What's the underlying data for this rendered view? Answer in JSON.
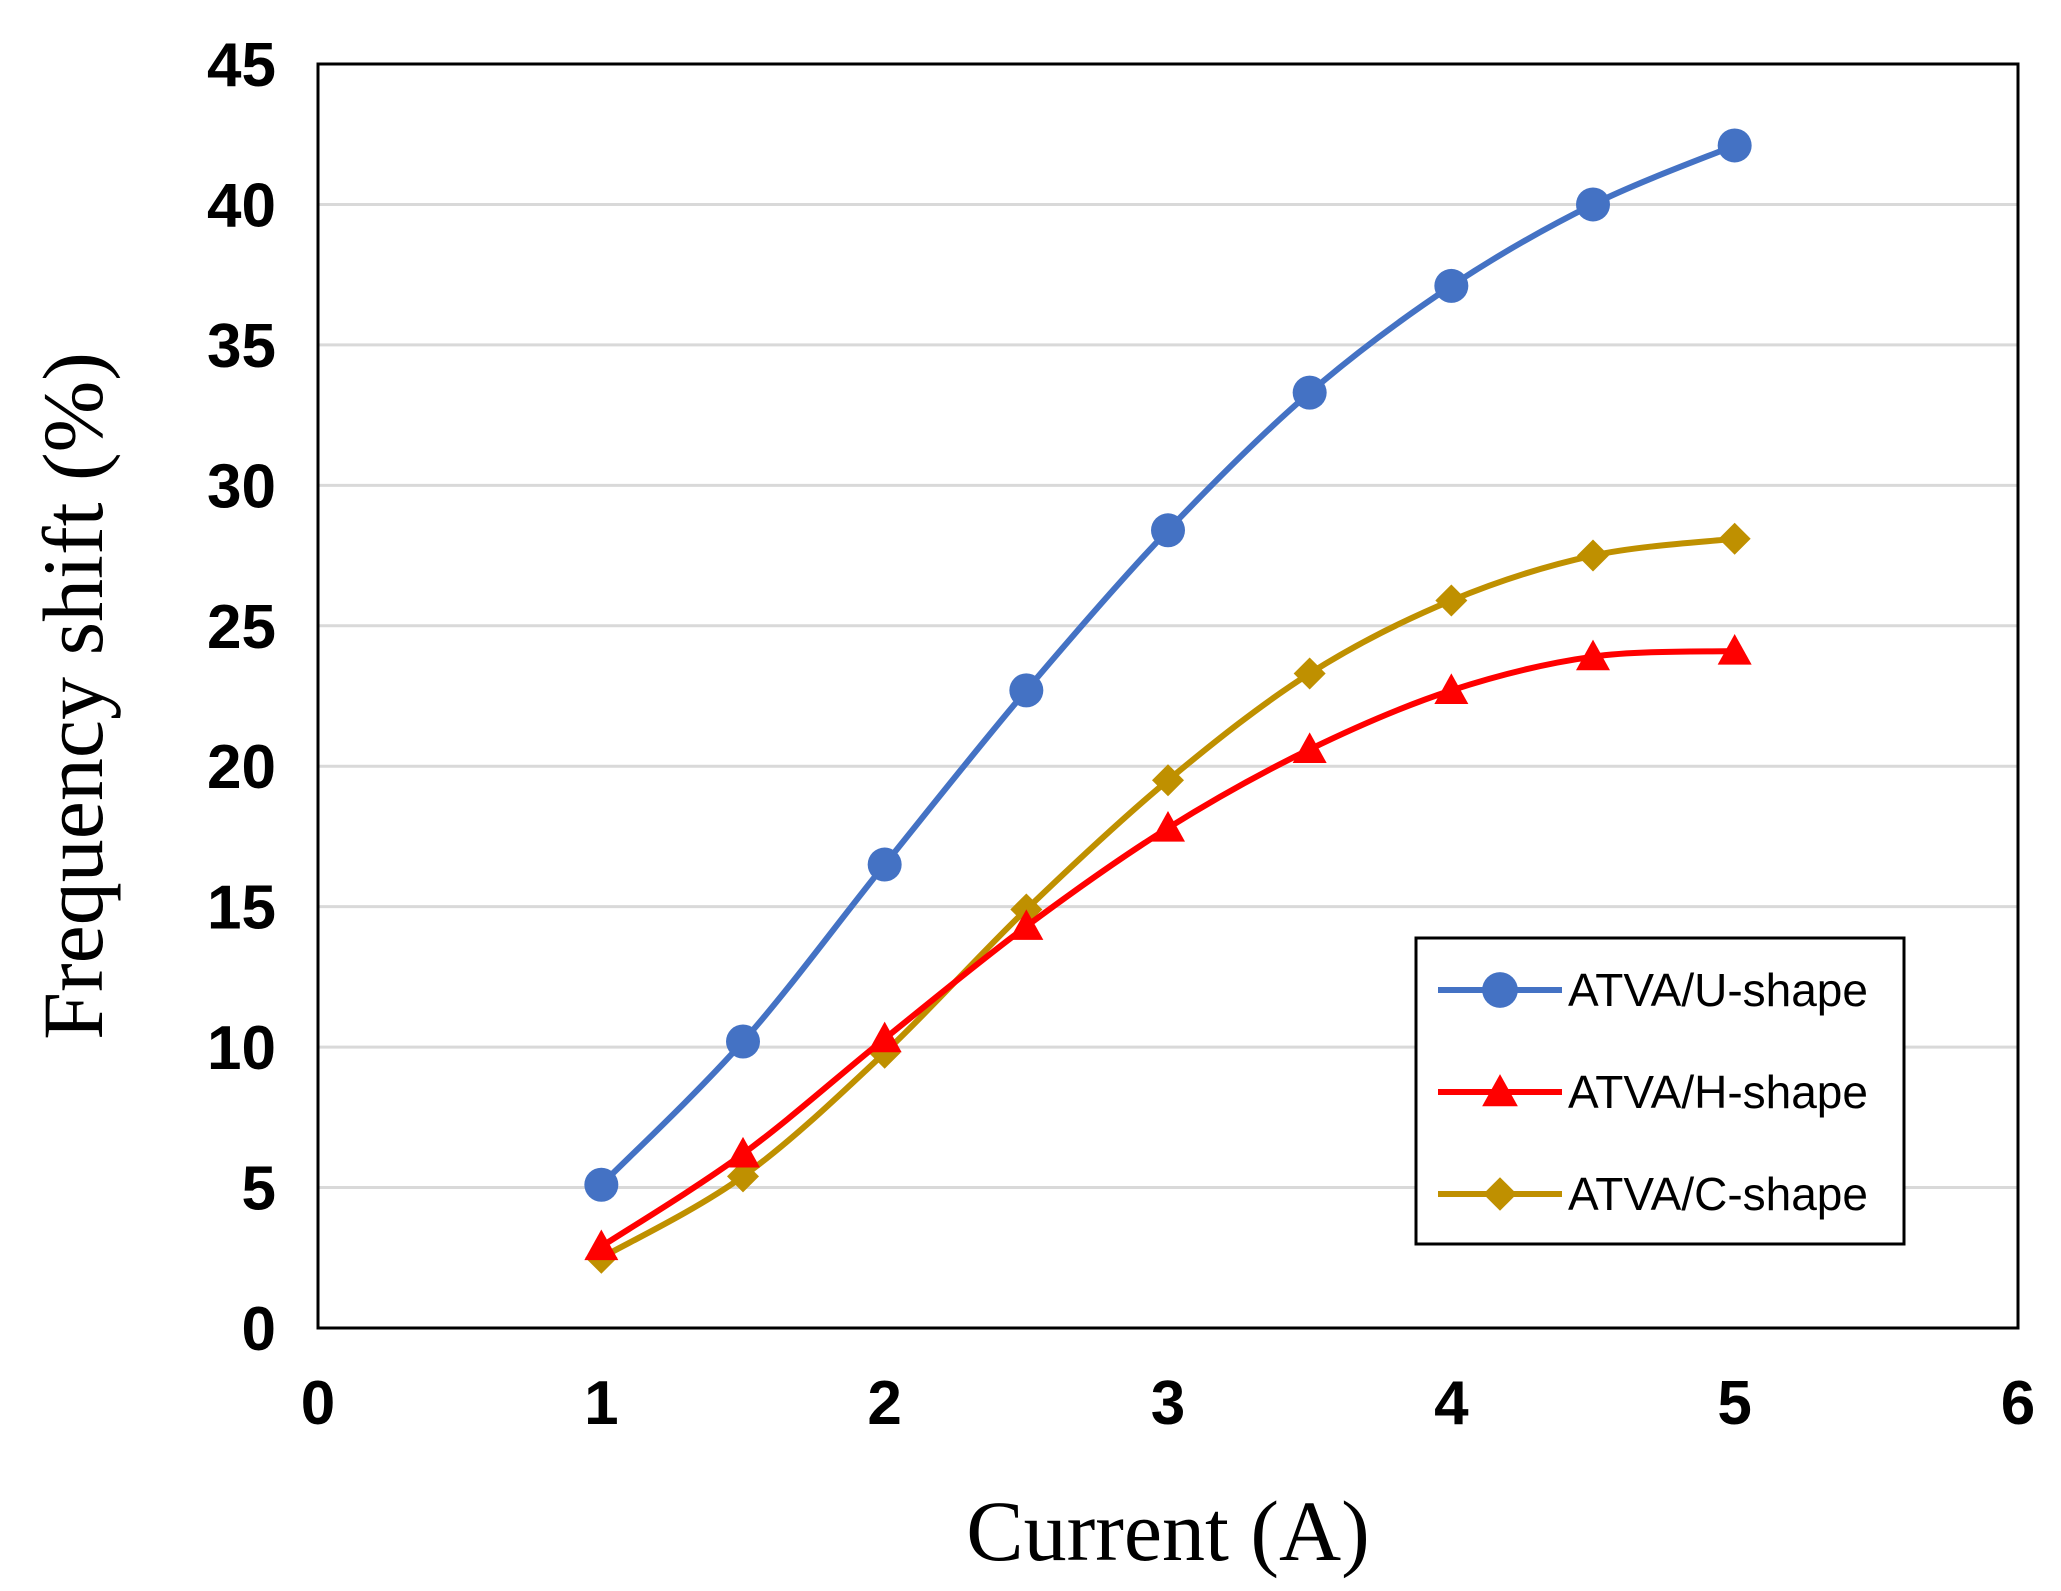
{
  "chart_data": {
    "type": "line",
    "title": "",
    "xlabel": "Current (A)",
    "ylabel": "Frequency shift (%)",
    "xlim": [
      0,
      6
    ],
    "ylim": [
      0,
      45
    ],
    "xticks": [
      0,
      1,
      2,
      3,
      4,
      5,
      6
    ],
    "yticks": [
      0,
      5,
      10,
      15,
      20,
      25,
      30,
      35,
      40,
      45
    ],
    "grid": "horizontal",
    "legend_position": "bottom-right",
    "x": [
      1,
      1.5,
      2,
      2.5,
      3,
      3.5,
      4,
      4.5,
      5
    ],
    "series": [
      {
        "name": "ATVA/U-shape",
        "marker": "circle",
        "color": "#4472C4",
        "values": [
          5.1,
          10.2,
          16.5,
          22.7,
          28.4,
          33.3,
          37.1,
          40.0,
          42.1
        ]
      },
      {
        "name": "ATVA/H-shape",
        "marker": "triangle",
        "color": "#FF0000",
        "values": [
          2.9,
          6.2,
          10.3,
          14.3,
          17.8,
          20.6,
          22.7,
          23.9,
          24.1
        ]
      },
      {
        "name": "ATVA/C-shape",
        "marker": "diamond",
        "color": "#BF9000",
        "values": [
          2.5,
          5.4,
          9.8,
          14.9,
          19.5,
          23.3,
          25.9,
          27.5,
          28.1
        ]
      }
    ]
  }
}
